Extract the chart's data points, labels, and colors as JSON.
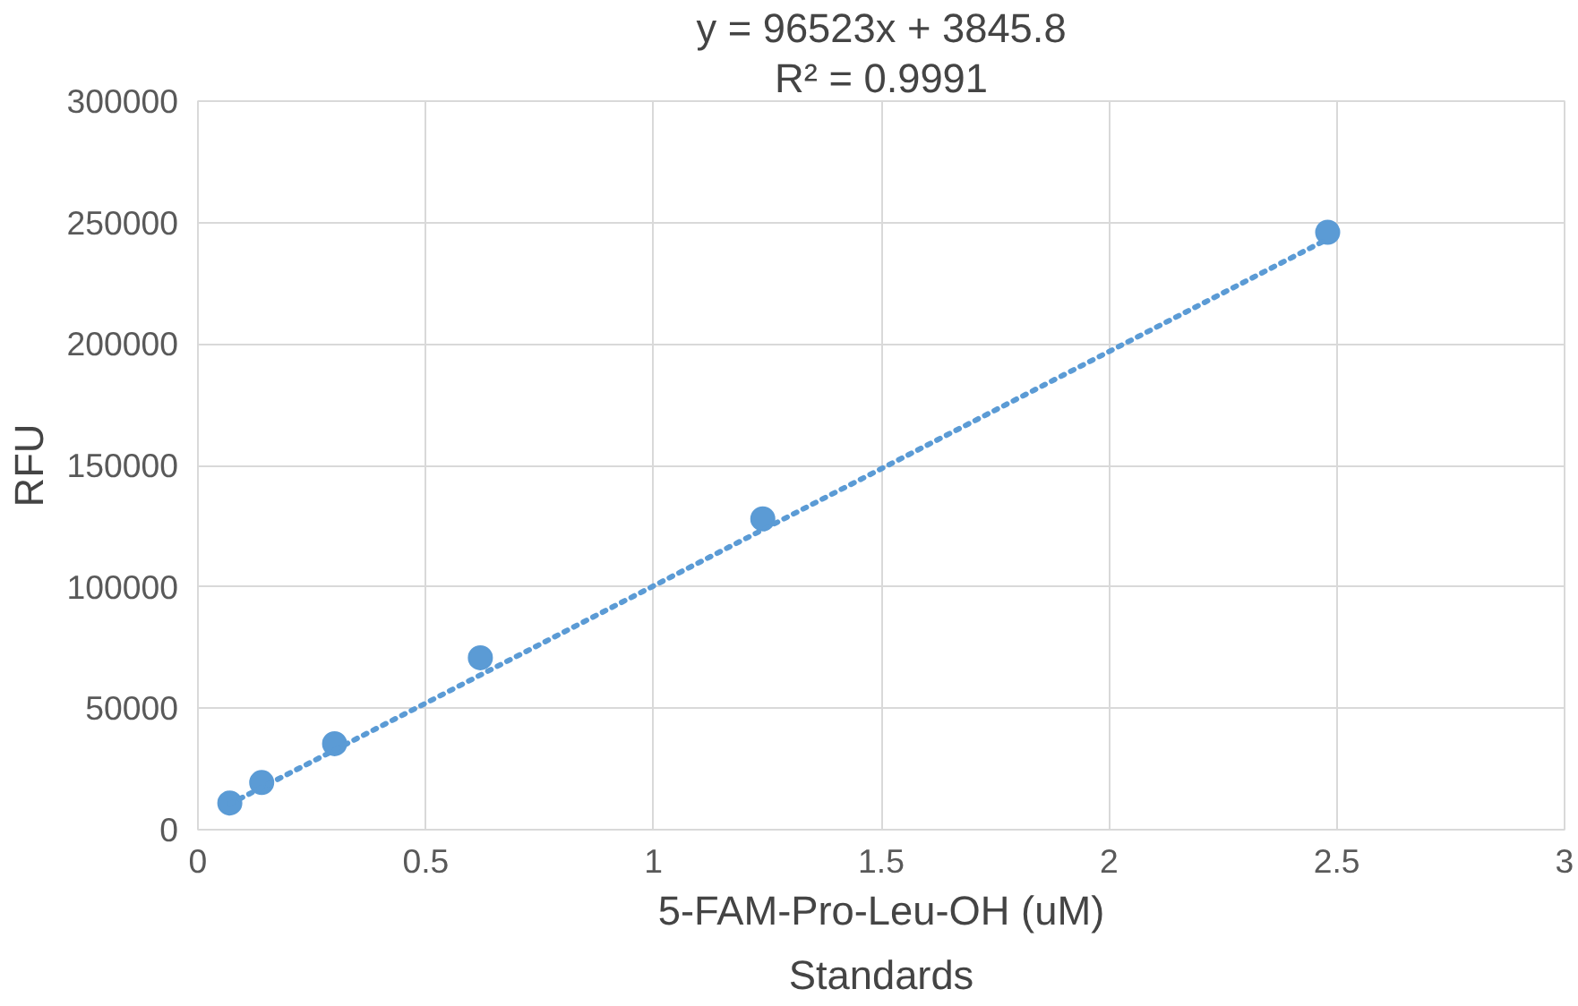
{
  "chart_data": {
    "type": "scatter",
    "title": "Standards",
    "xlabel": "5-FAM-Pro-Leu-OH (uM)",
    "ylabel": "RFU",
    "annotations": [
      "y = 96523x + 3845.8",
      "R² = 0.9991"
    ],
    "series": [
      {
        "color": "#5b9bd5",
        "x": [
          0.07,
          0.14,
          0.3,
          0.62,
          1.24,
          2.48
        ],
        "values": [
          11000,
          19400,
          35400,
          70800,
          128000,
          246000
        ],
        "marker": "circle"
      },
      {
        "type": "line",
        "color": "#5b9bd5",
        "x": [
          0.07,
          2.48
        ],
        "values": [
          10600,
          243200
        ],
        "line_style": "dotted"
      }
    ],
    "xlim": [
      0,
      3
    ],
    "xticks": [
      0,
      0.5,
      1,
      1.5,
      2,
      2.5,
      3
    ],
    "ylim": [
      0,
      300000
    ],
    "yticks": [
      0,
      50000,
      100000,
      150000,
      200000,
      250000,
      300000
    ],
    "grid": true
  }
}
